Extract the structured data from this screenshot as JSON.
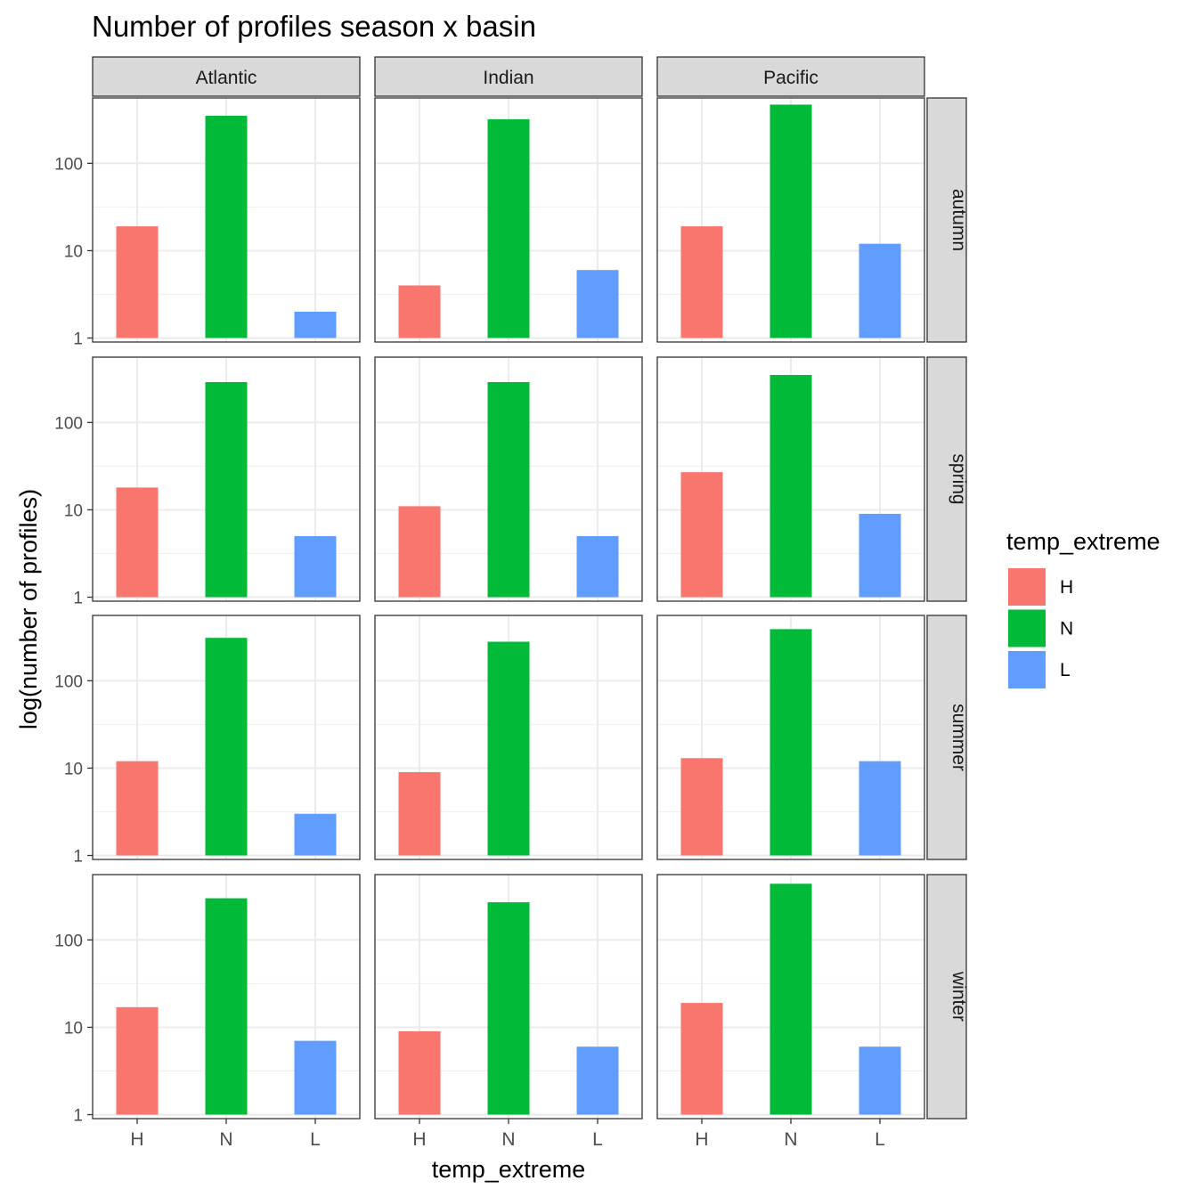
{
  "chart_data": {
    "type": "bar",
    "title": "Number of profiles season x basin",
    "xlabel": "temp_extreme",
    "ylabel": "log(number of profiles)",
    "y_scale": "log10",
    "ylim": [
      0.9,
      560
    ],
    "y_ticks": [
      1,
      10,
      100
    ],
    "y_tick_labels": [
      "1",
      "10",
      "100"
    ],
    "categories": [
      "H",
      "N",
      "L"
    ],
    "column_facets": [
      "Atlantic",
      "Indian",
      "Pacific"
    ],
    "row_facets": [
      "autumn",
      "spring",
      "summer",
      "winter"
    ],
    "grid": true,
    "legend": {
      "title": "temp_extreme",
      "position": "right",
      "entries": [
        "H",
        "N",
        "L"
      ]
    },
    "colors": {
      "H": "#F8766D",
      "N": "#00BA38",
      "L": "#619CFF"
    },
    "panels": [
      {
        "season": "autumn",
        "basin": "Atlantic",
        "values": {
          "H": 19,
          "N": 350,
          "L": 2
        }
      },
      {
        "season": "autumn",
        "basin": "Indian",
        "values": {
          "H": 4,
          "N": 320,
          "L": 6
        }
      },
      {
        "season": "autumn",
        "basin": "Pacific",
        "values": {
          "H": 19,
          "N": 470,
          "L": 12
        }
      },
      {
        "season": "spring",
        "basin": "Atlantic",
        "values": {
          "H": 18,
          "N": 290,
          "L": 5
        }
      },
      {
        "season": "spring",
        "basin": "Indian",
        "values": {
          "H": 11,
          "N": 290,
          "L": 5
        }
      },
      {
        "season": "spring",
        "basin": "Pacific",
        "values": {
          "H": 27,
          "N": 350,
          "L": 9
        }
      },
      {
        "season": "summer",
        "basin": "Atlantic",
        "values": {
          "H": 12,
          "N": 310,
          "L": 3
        }
      },
      {
        "season": "summer",
        "basin": "Indian",
        "values": {
          "H": 9,
          "N": 280,
          "L": null
        }
      },
      {
        "season": "summer",
        "basin": "Pacific",
        "values": {
          "H": 13,
          "N": 390,
          "L": 12
        }
      },
      {
        "season": "winter",
        "basin": "Atlantic",
        "values": {
          "H": 17,
          "N": 300,
          "L": 7
        }
      },
      {
        "season": "winter",
        "basin": "Indian",
        "values": {
          "H": 9,
          "N": 270,
          "L": 6
        }
      },
      {
        "season": "winter",
        "basin": "Pacific",
        "values": {
          "H": 19,
          "N": 440,
          "L": 6
        }
      }
    ]
  }
}
